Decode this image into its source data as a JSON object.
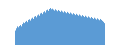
{
  "chart_data": {
    "type": "bar",
    "values": [
      4.5,
      5.2,
      5.8,
      5.5,
      5.9,
      6.2,
      5.8,
      6.5,
      7.0,
      6.8,
      7.2,
      7.5,
      7.1,
      7.8,
      8.0,
      7.6,
      8.2,
      8.5,
      8.1,
      8.8,
      9.0,
      8.6,
      9.2,
      9.5,
      9.1,
      9.8,
      10.0,
      9.6,
      10.2,
      10.5,
      10.1,
      10.8,
      11.0,
      10.6,
      11.2,
      11.5,
      11.1,
      11.3,
      11.0,
      10.7,
      11.1,
      10.8,
      10.5,
      10.9,
      10.6,
      10.3,
      10.7,
      10.4,
      10.1,
      10.5,
      10.2,
      9.9,
      10.3,
      10.0,
      9.7,
      10.1,
      9.8,
      9.5,
      9.9,
      9.6,
      9.3,
      9.7,
      9.4,
      9.1,
      9.5,
      9.2,
      8.9,
      9.3,
      9.0,
      8.7,
      9.1,
      8.8,
      8.5,
      8.9,
      8.6,
      8.3,
      8.7,
      8.4,
      8.1,
      8.5,
      8.2,
      7.9,
      8.3,
      8.0,
      7.7,
      8.1,
      7.8,
      7.5,
      7.2,
      6.8
    ],
    "color": "#5b9bd5",
    "ylim": [
      0,
      14
    ],
    "grid": false,
    "tick_labels": false
  }
}
